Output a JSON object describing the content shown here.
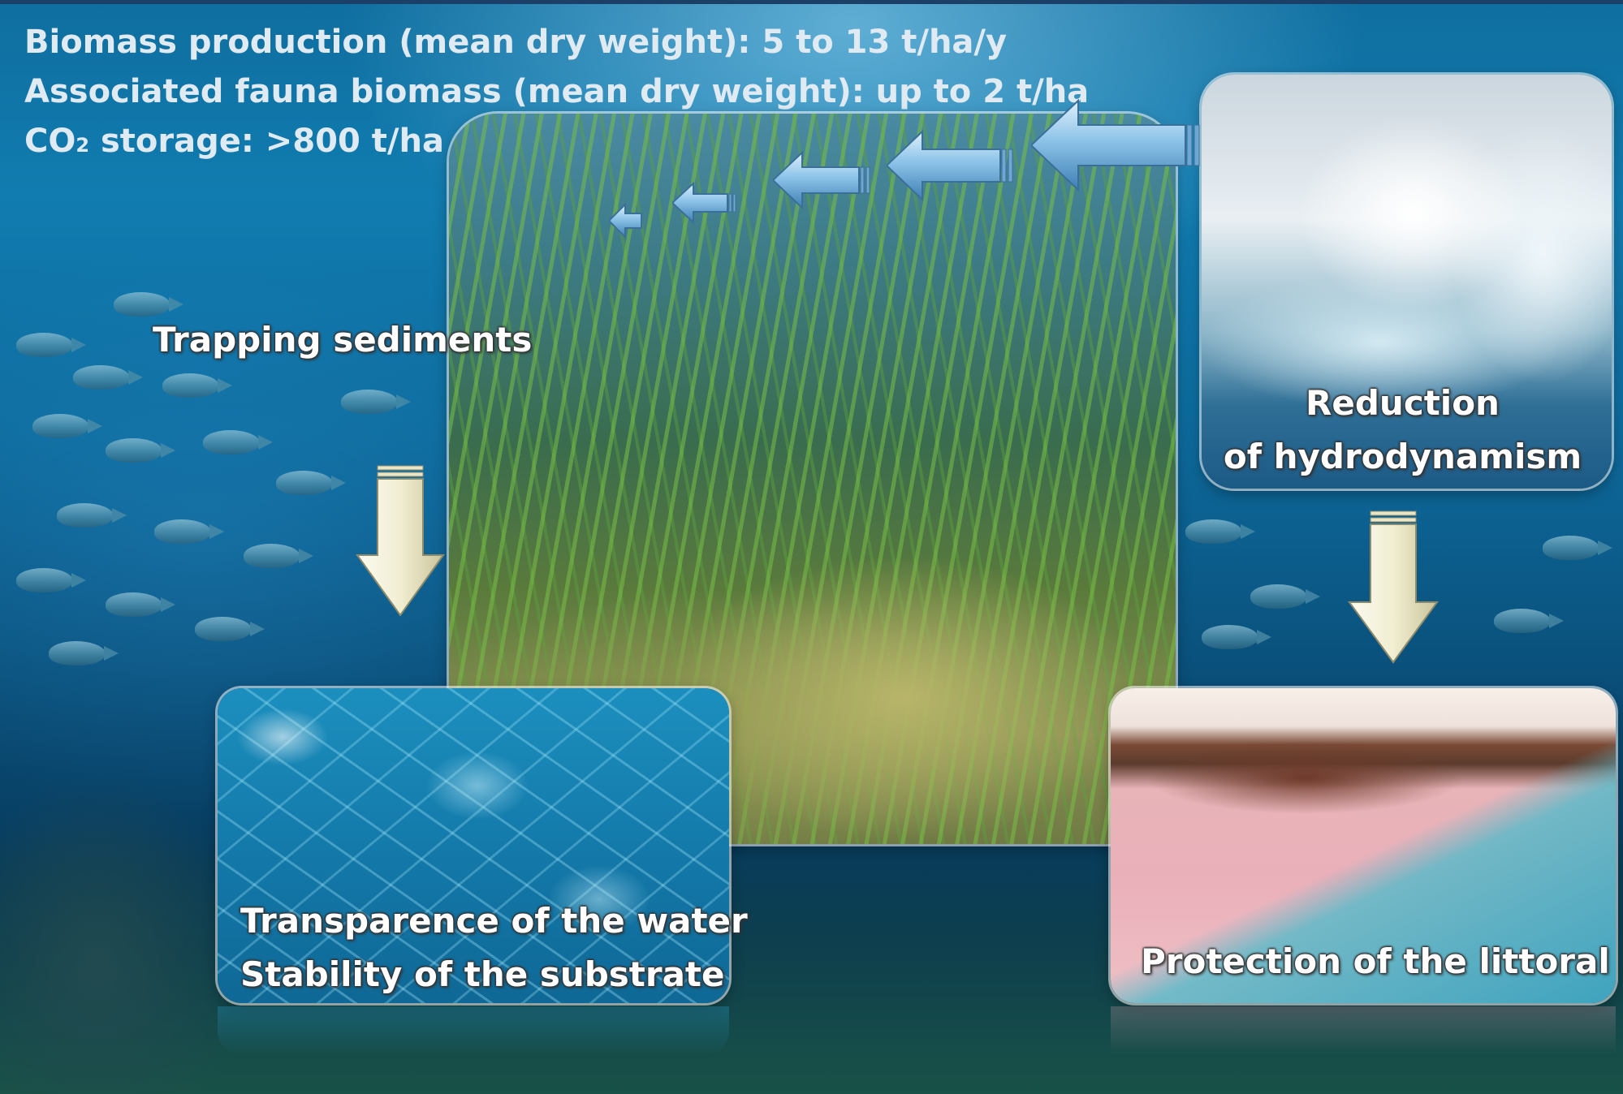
{
  "stats": {
    "line1": "Biomass production (mean dry weight): 5 to 13 t/ha/y",
    "line2": "Associated fauna biomass (mean dry weight): up to 2 t/ha",
    "line3_prefix": "CO",
    "line3_sub": "2",
    "line3_suffix": " storage: >800 t/ha"
  },
  "labels": {
    "trapping": "Trapping sediments",
    "reduction_line1": "Reduction",
    "reduction_line2": "of hydrodynamism",
    "water_line1": "Transparence of the water",
    "water_line2": "Stability of the substrate",
    "littoral": "Protection of the littoral"
  },
  "images": {
    "center": "seagrass meadow",
    "top_right": "breaking wave",
    "bottom_left": "clear water surface",
    "bottom_right": "pink sand beach"
  },
  "colors": {
    "stat_text": "#dfeaf2",
    "label_text": "#ffffff",
    "arrow_blue": "#7fb8e3",
    "arrow_cream": "#f5f2d8"
  }
}
